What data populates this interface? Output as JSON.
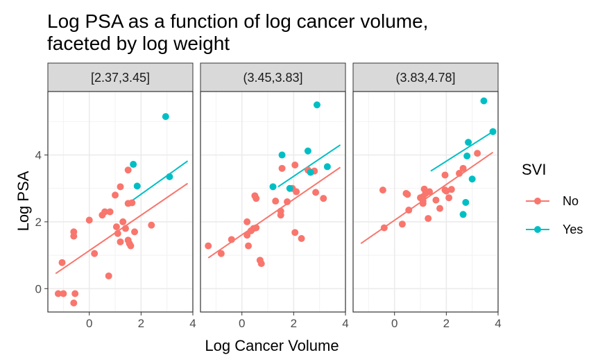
{
  "chart_data": {
    "type": "scatter",
    "title": [
      "Log PSA as a function of log cancer volume,",
      "faceted by log weight"
    ],
    "xlabel": "Log Cancer Volume",
    "ylabel": "Log PSA",
    "xlim": [
      -1.6,
      4.0
    ],
    "ylim": [
      -0.7,
      5.9
    ],
    "x_ticks": [
      0,
      2,
      4
    ],
    "y_ticks": [
      0,
      2,
      4
    ],
    "grid": true,
    "legend": {
      "title": "SVI",
      "position": "right",
      "entries": [
        {
          "name": "No",
          "color": "#F8766D"
        },
        {
          "name": "Yes",
          "color": "#00BFC4"
        }
      ]
    },
    "facets": [
      {
        "label": "[2.37,3.45]",
        "series": [
          {
            "name": "No",
            "color": "#F8766D",
            "points": [
              [
                -1.2,
                -0.15
              ],
              [
                -1.0,
                -0.15
              ],
              [
                -1.05,
                0.78
              ],
              [
                -0.6,
                1.7
              ],
              [
                -0.6,
                1.57
              ],
              [
                -0.55,
                -0.15
              ],
              [
                -0.6,
                -0.43
              ],
              [
                0.0,
                2.05
              ],
              [
                0.2,
                1.05
              ],
              [
                0.5,
                2.2
              ],
              [
                0.6,
                2.3
              ],
              [
                0.8,
                2.3
              ],
              [
                0.75,
                0.38
              ],
              [
                1.0,
                2.8
              ],
              [
                1.05,
                1.85
              ],
              [
                1.1,
                1.65
              ],
              [
                1.2,
                3.05
              ],
              [
                1.2,
                1.4
              ],
              [
                1.3,
                2.0
              ],
              [
                1.4,
                1.8
              ],
              [
                1.5,
                3.55
              ],
              [
                1.5,
                2.55
              ],
              [
                1.5,
                1.45
              ],
              [
                1.55,
                1.35
              ],
              [
                1.6,
                1.28
              ],
              [
                1.65,
                2.57
              ],
              [
                1.75,
                1.7
              ],
              [
                2.4,
                1.9
              ]
            ],
            "fit": [
              [
                -1.3,
                0.45
              ],
              [
                3.8,
                3.15
              ]
            ]
          },
          {
            "name": "Yes",
            "color": "#00BFC4",
            "points": [
              [
                1.7,
                3.72
              ],
              [
                1.85,
                3.07
              ],
              [
                2.95,
                5.15
              ],
              [
                3.1,
                3.35
              ]
            ],
            "fit": [
              [
                1.5,
                2.55
              ],
              [
                3.8,
                3.82
              ]
            ]
          }
        ]
      },
      {
        "label": "(3.45,3.83]",
        "series": [
          {
            "name": "No",
            "color": "#F8766D",
            "points": [
              [
                -1.3,
                1.28
              ],
              [
                -0.8,
                1.05
              ],
              [
                -0.4,
                1.47
              ],
              [
                0.2,
                2.0
              ],
              [
                0.2,
                1.6
              ],
              [
                0.25,
                1.28
              ],
              [
                0.35,
                1.73
              ],
              [
                0.45,
                1.8
              ],
              [
                0.5,
                2.78
              ],
              [
                0.55,
                1.82
              ],
              [
                0.55,
                2.7
              ],
              [
                0.7,
                0.85
              ],
              [
                0.75,
                0.75
              ],
              [
                1.3,
                2.62
              ],
              [
                1.5,
                2.32
              ],
              [
                1.5,
                2.2
              ],
              [
                1.55,
                3.6
              ],
              [
                1.75,
                2.6
              ],
              [
                1.95,
                3.0
              ],
              [
                2.05,
                3.7
              ],
              [
                2.05,
                1.68
              ],
              [
                2.1,
                2.9
              ],
              [
                2.3,
                1.5
              ],
              [
                2.55,
                3.55
              ],
              [
                2.8,
                3.52
              ],
              [
                2.85,
                2.88
              ],
              [
                3.15,
                2.7
              ]
            ],
            "fit": [
              [
                -1.3,
                0.92
              ],
              [
                3.8,
                3.63
              ]
            ]
          },
          {
            "name": "Yes",
            "color": "#00BFC4",
            "points": [
              [
                1.2,
                3.05
              ],
              [
                1.55,
                4.0
              ],
              [
                1.85,
                3.0
              ],
              [
                2.55,
                4.12
              ],
              [
                2.65,
                3.48
              ],
              [
                2.9,
                5.5
              ],
              [
                3.3,
                3.65
              ]
            ],
            "fit": [
              [
                1.4,
                3.05
              ],
              [
                3.8,
                4.3
              ]
            ]
          }
        ]
      },
      {
        "label": "(3.83,4.78]",
        "series": [
          {
            "name": "No",
            "color": "#F8766D",
            "points": [
              [
                -0.45,
                2.95
              ],
              [
                -0.4,
                1.82
              ],
              [
                0.3,
                1.93
              ],
              [
                0.45,
                2.85
              ],
              [
                0.5,
                2.82
              ],
              [
                0.55,
                2.35
              ],
              [
                1.0,
                2.72
              ],
              [
                1.1,
                2.75
              ],
              [
                1.1,
                2.62
              ],
              [
                1.1,
                2.55
              ],
              [
                1.15,
                2.98
              ],
              [
                1.2,
                2.85
              ],
              [
                1.3,
                2.1
              ],
              [
                1.35,
                2.9
              ],
              [
                1.6,
                2.65
              ],
              [
                1.75,
                2.4
              ],
              [
                1.95,
                3.4
              ],
              [
                1.95,
                2.95
              ],
              [
                2.0,
                2.92
              ],
              [
                2.1,
                2.72
              ],
              [
                2.2,
                2.97
              ],
              [
                2.5,
                3.45
              ],
              [
                2.65,
                3.6
              ],
              [
                3.2,
                4.05
              ]
            ],
            "fit": [
              [
                -1.3,
                1.35
              ],
              [
                3.8,
                4.08
              ]
            ]
          },
          {
            "name": "Yes",
            "color": "#00BFC4",
            "points": [
              [
                2.65,
                2.22
              ],
              [
                2.75,
                2.58
              ],
              [
                2.8,
                3.97
              ],
              [
                2.85,
                4.38
              ],
              [
                3.0,
                3.28
              ],
              [
                3.45,
                5.62
              ],
              [
                3.8,
                4.7
              ]
            ],
            "fit": [
              [
                1.4,
                3.52
              ],
              [
                3.8,
                4.7
              ]
            ]
          }
        ]
      }
    ]
  }
}
